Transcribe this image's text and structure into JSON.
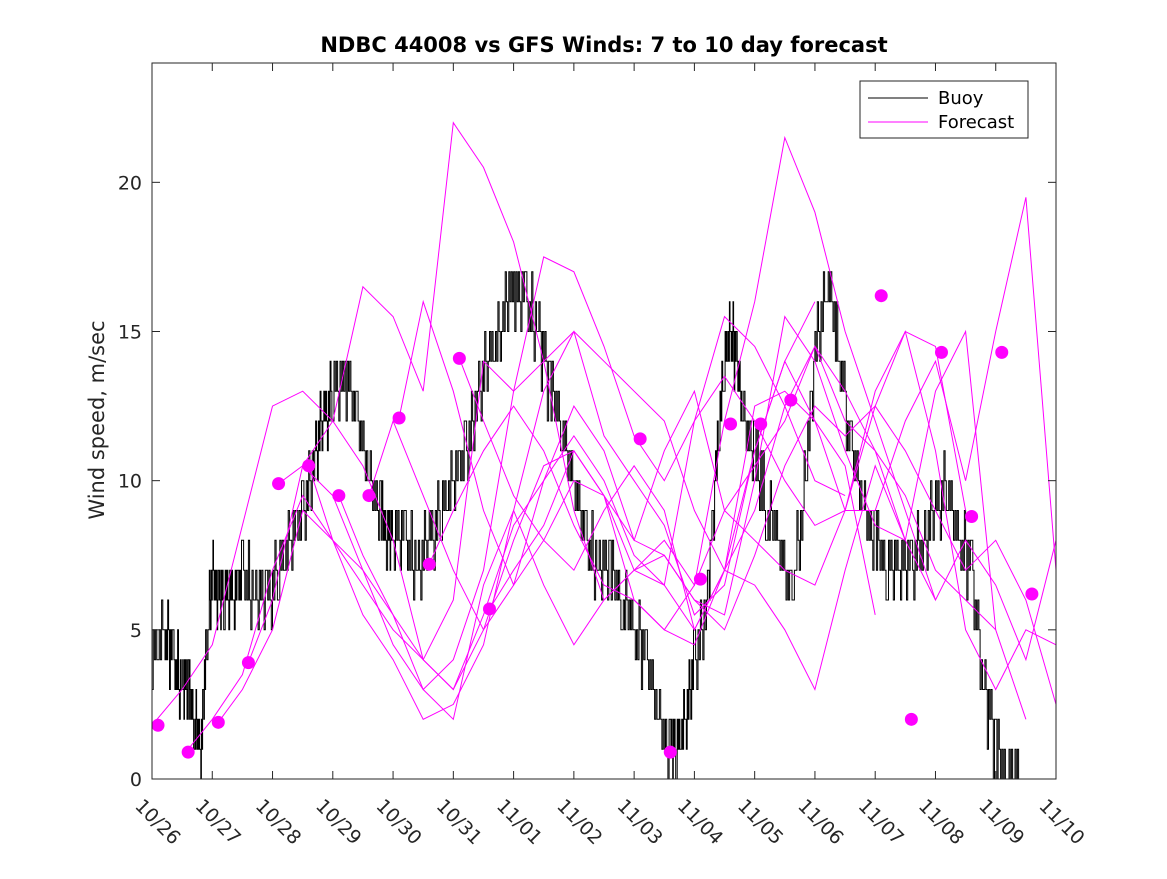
{
  "chart_data": {
    "type": "line",
    "title": "NDBC 44008 vs GFS Winds: 7 to 10 day forecast",
    "xlabel": "",
    "ylabel": "Wind speed, m/sec",
    "xlim": [
      0,
      15
    ],
    "ylim": [
      0,
      24
    ],
    "yticks": [
      0,
      5,
      10,
      15,
      20
    ],
    "xtick_labels": [
      "10/26",
      "10/27",
      "10/28",
      "10/29",
      "10/30",
      "10/31",
      "11/01",
      "11/02",
      "11/03",
      "11/04",
      "11/05",
      "11/06",
      "11/07",
      "11/08",
      "11/09",
      "11/10"
    ],
    "x_units": "days since 10/26 00:00",
    "legend": {
      "position": "top-right",
      "entries": [
        "Buoy",
        "Forecast"
      ]
    },
    "colors": {
      "buoy": "#000000",
      "forecast": "#ff00ff",
      "axes": "#262626"
    },
    "series": [
      {
        "name": "Buoy",
        "x": [
          0,
          0.2,
          0.35,
          0.5,
          0.6,
          0.7,
          0.8,
          0.9,
          1.0,
          1.1,
          1.2,
          1.35,
          1.5,
          1.7,
          1.9,
          2.1,
          2.3,
          2.5,
          2.7,
          2.85,
          3.0,
          3.2,
          3.4,
          3.6,
          3.8,
          3.9,
          4.0,
          4.2,
          4.4,
          4.6,
          4.8,
          5.0,
          5.2,
          5.4,
          5.6,
          5.8,
          6.0,
          6.2,
          6.4,
          6.6,
          6.8,
          7.0,
          7.2,
          7.4,
          7.6,
          7.8,
          8.0,
          8.2,
          8.4,
          8.6,
          8.7,
          8.85,
          9.0,
          9.2,
          9.35,
          9.5,
          9.6,
          9.7,
          9.8,
          10.0,
          10.2,
          10.4,
          10.6,
          10.8,
          11.0,
          11.2,
          11.4,
          11.6,
          11.8,
          12.0,
          12.2,
          12.4,
          12.6,
          12.8,
          13.0,
          13.2,
          13.4,
          13.6,
          13.8,
          14.0,
          14.2,
          14.4,
          14.6,
          14.8,
          15.0
        ],
        "values": [
          4,
          5,
          4,
          3,
          3,
          2,
          1,
          4,
          7,
          6,
          6,
          6,
          7,
          6,
          6,
          7,
          8,
          9,
          11,
          12,
          13,
          13.5,
          12,
          10,
          9,
          8,
          8,
          8,
          7,
          8,
          9,
          10,
          11,
          13,
          14,
          15.5,
          16.5,
          16,
          15,
          13,
          12,
          10,
          8,
          7,
          7,
          6,
          5,
          4,
          2,
          1,
          1,
          2,
          4,
          6,
          10,
          14,
          15,
          14,
          12,
          11,
          9,
          8,
          6,
          9,
          14,
          17,
          14,
          11,
          9,
          8,
          7,
          7,
          7,
          8,
          9,
          10,
          8,
          7,
          3,
          1,
          0,
          null,
          null,
          null,
          null
        ]
      },
      {
        "name": "Forecast",
        "x": [
          0,
          0.5,
          1.0,
          1.5,
          2.0,
          2.5,
          3.0,
          3.5,
          4.0,
          4.5,
          5.0,
          5.5,
          6.0,
          6.5,
          7.0,
          7.5,
          8.0,
          8.5,
          9.0,
          9.5,
          10.0,
          10.5,
          11.0,
          11.5,
          12.0,
          12.5,
          13.0,
          13.5,
          14.0,
          14.5,
          15.0
        ],
        "values": [
          1.8,
          3.0,
          4.5,
          8.5,
          12.5,
          13.0,
          12.0,
          16.5,
          15.5,
          13.0,
          22.0,
          20.5,
          18.0,
          14.0,
          9.0,
          6.0,
          7.0,
          8.0,
          6.5,
          12.0,
          16.0,
          21.5,
          19.0,
          15.0,
          12.0,
          9.0,
          6.0,
          8.0,
          6.5,
          4.0,
          8.0
        ]
      },
      {
        "name": "Forecast",
        "x": [
          0.6,
          1.0,
          1.5,
          2.0,
          2.5,
          3.0,
          3.5,
          4.0,
          4.5,
          5.0,
          5.5,
          6.0,
          6.5,
          7.0,
          7.5,
          8.0,
          8.5,
          9.0,
          9.5,
          10.0,
          10.5,
          11.0,
          11.5,
          12.0,
          12.5,
          13.0,
          13.5,
          14.0,
          14.5,
          15.0
        ],
        "values": [
          1.0,
          2.0,
          3.5,
          7.0,
          9.5,
          8.0,
          6.5,
          5.0,
          4.0,
          6.0,
          14.0,
          13.0,
          17.5,
          17.0,
          14.5,
          11.5,
          10.0,
          12.0,
          13.5,
          12.0,
          10.0,
          8.5,
          9.0,
          13.0,
          15.0,
          11.0,
          5.0,
          3.0,
          5.0,
          4.5
        ]
      },
      {
        "name": "Forecast",
        "x": [
          1.1,
          1.5,
          2.0,
          2.5,
          3.0,
          3.5,
          4.0,
          4.5,
          5.0,
          5.5,
          6.0,
          6.5,
          7.0,
          7.5,
          8.0,
          8.5,
          9.0,
          9.5,
          10.0,
          10.5,
          11.0
        ],
        "values": [
          1.9,
          3.0,
          5.0,
          9.0,
          8.0,
          7.0,
          5.5,
          3.0,
          4.0,
          7.0,
          13.0,
          14.0,
          15.0,
          11.5,
          10.0,
          8.5,
          5.5,
          6.5,
          11.0,
          14.0,
          16.0
        ]
      },
      {
        "name": "Forecast",
        "x": [
          1.6,
          2.0,
          2.5,
          3.0,
          3.5,
          4.0,
          4.5,
          5.0,
          5.5,
          6.0,
          6.5,
          7.0,
          7.5,
          8.0,
          8.5,
          9.0,
          9.5,
          10.0,
          10.5,
          11.0,
          11.5
        ],
        "values": [
          3.9,
          6.0,
          10.5,
          9.5,
          7.0,
          4.5,
          3.0,
          2.0,
          6.5,
          9.0,
          6.5,
          4.5,
          6.0,
          7.0,
          6.5,
          12.0,
          15.5,
          14.5,
          12.5,
          10.0,
          9.5
        ]
      },
      {
        "name": "Forecast",
        "x": [
          2.1,
          2.5,
          3.0,
          3.5,
          4.0,
          4.5,
          5.0,
          5.5,
          6.0,
          6.5,
          7.0,
          7.5,
          8.0,
          8.5,
          9.0,
          9.5,
          10.0,
          10.5,
          11.0,
          11.5,
          12.0
        ],
        "values": [
          9.9,
          10.5,
          12.0,
          10.5,
          8.0,
          4.0,
          3.0,
          5.0,
          8.0,
          10.5,
          11.0,
          9.5,
          6.0,
          5.0,
          4.5,
          7.0,
          12.5,
          13.0,
          12.0,
          10.5,
          5.5
        ]
      },
      {
        "name": "Forecast",
        "x": [
          2.6,
          3.0,
          3.5,
          4.0,
          4.5,
          5.0,
          5.5,
          6.0,
          6.5,
          7.0,
          7.5,
          8.0,
          8.5,
          9.0,
          9.5,
          10.0,
          10.5,
          11.0,
          11.5,
          12.0,
          12.5
        ],
        "values": [
          10.5,
          8.0,
          5.5,
          4.0,
          2.0,
          2.5,
          4.5,
          9.0,
          13.0,
          15.0,
          14.0,
          13.0,
          12.0,
          9.0,
          7.0,
          6.5,
          5.0,
          3.0,
          7.0,
          10.5,
          8.0
        ]
      },
      {
        "name": "Forecast",
        "x": [
          3.1,
          3.5,
          4.0,
          4.5,
          5.0,
          5.5,
          6.0,
          6.5,
          7.0,
          7.5,
          8.0,
          8.5,
          9.0,
          9.5,
          10.0,
          10.5,
          11.0,
          11.5,
          12.0,
          12.5,
          13.0
        ],
        "values": [
          9.5,
          7.5,
          5.5,
          4.0,
          3.0,
          5.5,
          8.5,
          10.0,
          11.5,
          10.0,
          7.5,
          6.5,
          5.0,
          7.0,
          9.0,
          12.5,
          14.5,
          13.0,
          11.0,
          8.0,
          6.0
        ]
      },
      {
        "name": "Forecast",
        "x": [
          3.6,
          4.0,
          4.5,
          5.0,
          5.5,
          6.0,
          6.5,
          7.0,
          7.5,
          8.0,
          8.5,
          9.0,
          9.5,
          10.0,
          10.5,
          11.0,
          11.5,
          12.0,
          12.5,
          13.0,
          13.5
        ],
        "values": [
          9.5,
          12.0,
          9.5,
          7.0,
          5.0,
          6.5,
          10.0,
          12.5,
          11.0,
          8.0,
          7.5,
          6.0,
          5.0,
          7.5,
          10.5,
          12.5,
          11.5,
          12.5,
          15.0,
          14.5,
          9.0
        ]
      },
      {
        "name": "Forecast",
        "x": [
          4.1,
          4.5,
          5.0,
          5.5,
          6.0,
          6.5,
          7.0,
          7.5,
          8.0,
          8.5,
          9.0,
          9.5,
          10.0,
          10.5,
          11.0,
          11.5,
          12.0,
          12.5,
          13.0,
          13.5,
          14.0
        ],
        "values": [
          12.1,
          16.0,
          13.0,
          9.0,
          6.5,
          8.0,
          10.0,
          9.5,
          7.0,
          7.5,
          6.0,
          5.5,
          10.0,
          15.5,
          14.0,
          11.0,
          8.5,
          8.0,
          13.0,
          15.0,
          5.0
        ]
      },
      {
        "name": "Forecast",
        "x": [
          4.6,
          5.0,
          5.5,
          6.0,
          6.5,
          7.0,
          7.5,
          8.0,
          8.5,
          9.0,
          9.5,
          10.0,
          10.5,
          11.0,
          11.5,
          12.0,
          12.5,
          13.0,
          13.5,
          14.0,
          14.5
        ],
        "values": [
          7.2,
          9.0,
          11.0,
          12.5,
          11.0,
          8.5,
          6.5,
          6.0,
          5.0,
          6.5,
          9.0,
          10.5,
          12.0,
          14.5,
          12.0,
          11.0,
          9.5,
          7.0,
          6.0,
          5.0,
          2.0
        ]
      },
      {
        "name": "Forecast",
        "x": [
          5.1,
          5.5,
          6.0,
          6.5,
          7.0,
          7.5,
          8.0,
          8.5,
          9.0,
          9.5,
          10.0,
          10.5,
          11.0,
          11.5,
          12.0,
          12.5,
          13.0,
          13.5,
          14.0,
          14.5,
          15.0
        ],
        "values": [
          14.1,
          12.0,
          9.5,
          8.0,
          7.0,
          9.0,
          10.5,
          9.0,
          5.0,
          7.0,
          11.0,
          14.0,
          12.0,
          9.0,
          9.0,
          12.0,
          14.0,
          10.0,
          15.0,
          19.5,
          7.0
        ]
      },
      {
        "name": "Forecast",
        "x": [
          5.6,
          6.0,
          6.5,
          7.0,
          7.5,
          8.0,
          8.5,
          9.0,
          9.5,
          10.0,
          10.5,
          11.0,
          11.5,
          12.0,
          12.5,
          13.0,
          13.5,
          14.0,
          14.5,
          15.0
        ],
        "values": [
          5.7,
          7.0,
          8.5,
          11.0,
          9.5,
          8.0,
          11.0,
          13.0,
          9.0,
          8.0,
          7.0,
          6.5,
          9.0,
          12.5,
          11.0,
          9.0,
          7.0,
          8.0,
          6.0,
          2.5
        ]
      }
    ],
    "forecast_markers": {
      "x": [
        0.1,
        0.6,
        1.1,
        1.6,
        2.1,
        2.6,
        3.1,
        3.6,
        4.1,
        4.6,
        5.1,
        5.6,
        8.1,
        8.6,
        9.1,
        9.6,
        10.1,
        10.6,
        12.1,
        12.6,
        13.1,
        13.6,
        14.1,
        14.6
      ],
      "values": [
        1.8,
        0.9,
        1.9,
        3.9,
        9.9,
        10.5,
        9.5,
        9.5,
        12.1,
        7.2,
        14.1,
        5.7,
        11.4,
        0.9,
        6.7,
        11.9,
        11.9,
        12.7,
        16.2,
        2.0,
        14.3,
        8.8,
        14.3,
        6.2
      ]
    }
  }
}
